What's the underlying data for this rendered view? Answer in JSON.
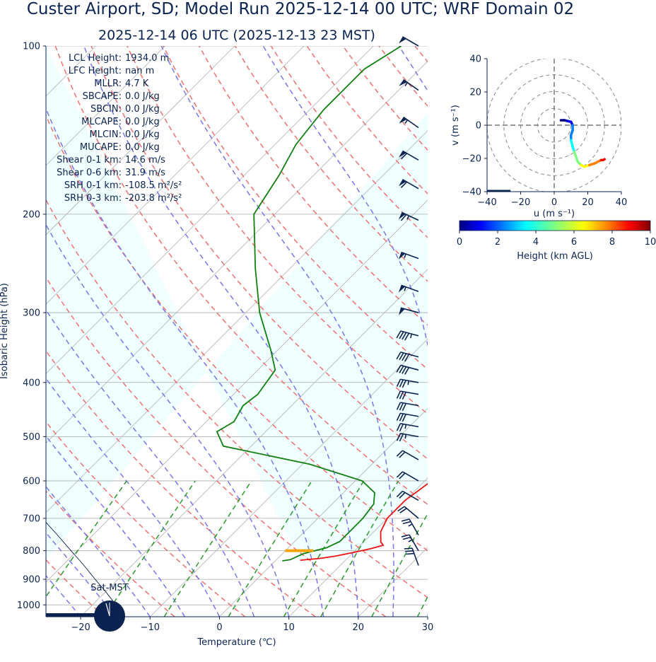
{
  "title": "Custer Airport, SD; Model Run 2025-12-14 00 UTC; WRF Domain 02",
  "subtitle": "2025-12-14 06 UTC  (2025-12-13 23 MST)",
  "colors": {
    "text": "#0a2350",
    "temperature": "#ee1111",
    "dewpoint": "#108010",
    "parcel": "#0a2350",
    "lcl": "#f5a50a",
    "dry_adiabat": "#f07070",
    "moist_adiabat": "#7777ee",
    "mixing_ratio": "#2a9a2a",
    "cape_fill": "#f0ffff"
  },
  "indices": [
    {
      "label": "LCL Height:",
      "value": "1934.0 m"
    },
    {
      "label": "LFC Height:",
      "value": "nan m"
    },
    {
      "label": "MLLR:",
      "value": "4.7 K"
    },
    {
      "label": "SBCAPE:",
      "value": "0.0 J/kg"
    },
    {
      "label": "SBCIN:",
      "value": "0.0 J/kg"
    },
    {
      "label": "MLCAPE:",
      "value": "0.0 J/kg"
    },
    {
      "label": "MLCIN:",
      "value": "0.0 J/kg"
    },
    {
      "label": "MUCAPE:",
      "value": "0.0 J/kg"
    },
    {
      "label": "Shear 0-1 km:",
      "value": "14.6 m/s"
    },
    {
      "label": "Shear 0-6 km:",
      "value": "31.9 m/s"
    },
    {
      "label": "SRH 0-1 km:",
      "value": "-108.5 m²/s²"
    },
    {
      "label": "SRH 0-3 km:",
      "value": "-203.8 m²/s²"
    }
  ],
  "clock_label": "Sat-MST",
  "chart_data": [
    {
      "type": "line",
      "name": "skew-t",
      "xlabel": "Temperature (℃)",
      "ylabel": "Isobaric Height (hPa)",
      "xlim": [
        -25,
        30
      ],
      "ylim": [
        1050,
        100
      ],
      "log_y": true,
      "skew_deg": 45,
      "xticks": [
        -20,
        -10,
        0,
        10,
        20,
        30
      ],
      "yticks": [
        100,
        200,
        300,
        400,
        500,
        600,
        700,
        800,
        900,
        1000
      ],
      "grid": true,
      "lcl": {
        "pressure": 800,
        "temperature": 2
      },
      "series": [
        {
          "key": "temperature",
          "p": [
            832,
            826,
            818,
            806,
            793,
            782,
            772,
            740,
            700,
            650,
            600,
            560,
            500,
            450,
            400,
            350,
            300,
            250,
            215,
            200,
            190,
            170,
            160,
            140,
            120,
            100
          ],
          "t": [
            3.5,
            6,
            8,
            10,
            12,
            13.3,
            12.5,
            11,
            10,
            10,
            11,
            11,
            10,
            8.5,
            5.5,
            1,
            -4.5,
            -12,
            -20,
            -23,
            -24,
            -24,
            -26,
            -30,
            -36,
            -44
          ]
        },
        {
          "key": "dewpoint",
          "p": [
            834,
            830,
            820,
            810,
            790,
            770,
            740,
            700,
            660,
            630,
            600,
            560,
            520,
            490,
            470,
            440,
            420,
            380,
            350,
            300,
            250,
            200,
            170,
            150,
            130,
            110,
            100
          ],
          "t": [
            1,
            2,
            2.5,
            3,
            5.5,
            6.5,
            6.5,
            6.5,
            6,
            4.5,
            1,
            -9,
            -24,
            -27,
            -26,
            -27,
            -26.5,
            -27.5,
            -31,
            -38,
            -45,
            -53,
            -55,
            -57,
            -58,
            -58,
            -56
          ]
        },
        {
          "key": "parcel",
          "p": [
            1050,
            950,
            900,
            850,
            800,
            750,
            700,
            650,
            600,
            550,
            500,
            450,
            400,
            350,
            300,
            250,
            200,
            150,
            100
          ],
          "t": [
            -13.6,
            -19.8,
            -23.3,
            -26.9,
            -30.9,
            -35.1,
            -39.7,
            -44.5,
            -49.8,
            -55.6,
            -62,
            -69.1,
            -76.9,
            -85.9,
            -96.1,
            -108.3,
            -122.9,
            -141.7,
            -167.9
          ]
        }
      ],
      "dry_adiabats_theta_K": [
        253,
        263,
        273,
        283,
        293,
        303,
        313,
        323,
        333,
        343,
        353,
        363,
        373,
        383,
        393,
        403,
        413,
        423,
        433,
        443
      ],
      "moist_adiabats_start_C": [
        -20,
        -15,
        -10,
        -5,
        0,
        5,
        10,
        15,
        20,
        25,
        30,
        35
      ],
      "mixing_ratio_g_per_kg": [
        0.4,
        1,
        2,
        4,
        7,
        10,
        16,
        24,
        32
      ]
    },
    {
      "type": "scatter",
      "name": "hodograph",
      "xlabel": "u (m s⁻¹)",
      "ylabel": "v (m s⁻¹)",
      "xlim": [
        -40,
        40
      ],
      "ylim": [
        -40,
        40
      ],
      "xticks": [
        -40,
        -20,
        0,
        20,
        40
      ],
      "yticks": [
        -40,
        -20,
        0,
        20,
        40
      ],
      "rings": [
        10,
        20,
        30,
        40
      ],
      "u": [
        4,
        6,
        8,
        10,
        11,
        11,
        10,
        10,
        11,
        12,
        13,
        14,
        16,
        18,
        21,
        24,
        26,
        28,
        29,
        30
      ],
      "v": [
        3,
        3,
        2.5,
        2,
        0,
        -3,
        -6,
        -9,
        -13,
        -16,
        -19,
        -22,
        -24,
        -25,
        -24,
        -23,
        -22,
        -21,
        -21,
        -20.5
      ],
      "height_km": [
        0,
        0.5,
        1,
        1.5,
        2,
        2.5,
        3,
        3.5,
        4,
        4.5,
        5,
        5.5,
        6,
        6.5,
        7,
        7.5,
        8,
        8.5,
        9,
        10
      ]
    },
    {
      "type": "heatmap",
      "name": "height-colorbar",
      "label": "Height (km AGL)",
      "range": [
        0,
        10
      ],
      "ticks": [
        0,
        2,
        4,
        6,
        8,
        10
      ],
      "colormap": [
        "#00007f",
        "#0000ff",
        "#007fff",
        "#00ffff",
        "#7fff7f",
        "#ffff00",
        "#ff7f00",
        "#ff0000",
        "#7f0000"
      ]
    },
    {
      "type": "scatter",
      "name": "wind-barbs",
      "p": [
        100,
        120,
        140,
        160,
        180,
        205,
        240,
        275,
        300,
        330,
        360,
        380,
        400,
        420,
        440,
        460,
        480,
        500,
        550,
        600,
        650,
        700,
        750,
        800,
        850
      ],
      "speed_kt": [
        50,
        55,
        55,
        60,
        60,
        65,
        55,
        55,
        50,
        45,
        40,
        40,
        35,
        30,
        30,
        30,
        25,
        25,
        20,
        20,
        20,
        20,
        25,
        25,
        30
      ],
      "dir_deg": [
        300,
        305,
        305,
        300,
        300,
        295,
        290,
        290,
        285,
        285,
        285,
        285,
        280,
        280,
        280,
        280,
        280,
        280,
        300,
        300,
        300,
        310,
        330,
        330,
        340
      ]
    }
  ]
}
